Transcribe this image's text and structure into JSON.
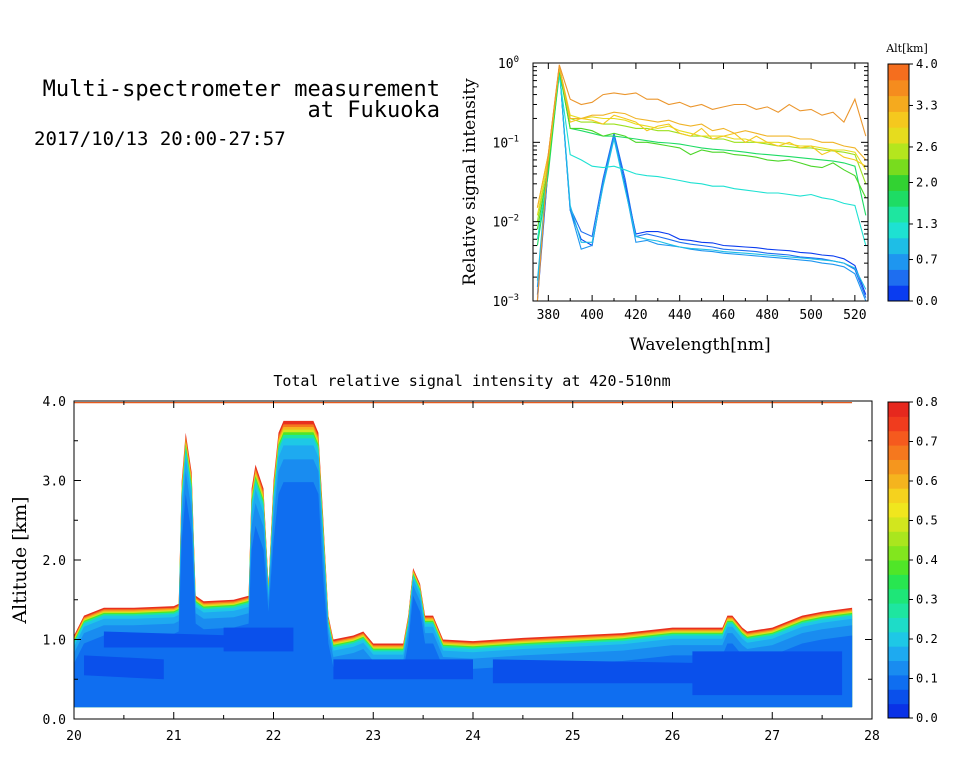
{
  "header": {
    "title_line1": "Multi-spectrometer measurement",
    "title_line2": "at Fukuoka",
    "date_range": "2017/10/13 20:00-27:57"
  },
  "chart_data": [
    {
      "type": "line",
      "ylabel": "Relative signal intensity",
      "xlabel": "Wavelength[nm]",
      "yscale": "log",
      "xlim": [
        373,
        526
      ],
      "ylim": [
        0.001,
        1
      ],
      "x_ticks": [
        "380",
        "400",
        "420",
        "440",
        "460",
        "480",
        "500",
        "520"
      ],
      "y_ticks": [
        {
          "value": 1,
          "base": "10",
          "exp": "0"
        },
        {
          "value": 0.1,
          "base": "10",
          "exp": "−1"
        },
        {
          "value": 0.01,
          "base": "10",
          "exp": "−2"
        },
        {
          "value": 0.001,
          "base": "10",
          "exp": "−3"
        }
      ],
      "colorbar": {
        "title": "Alt[km]",
        "ticks": [
          "0.0",
          "0.7",
          "1.3",
          "2.0",
          "2.6",
          "3.3",
          "4.0"
        ],
        "min": 0,
        "max": 4,
        "colors": [
          "#0a3cf0",
          "#1e6ef0",
          "#1e96f0",
          "#1ebee6",
          "#1ee1d2",
          "#1ee6a0",
          "#1edc64",
          "#32d232",
          "#78dc1e",
          "#b4e61e",
          "#e6dc1e",
          "#f5c81e",
          "#f5aa1e",
          "#f58c1e",
          "#f56e1e"
        ]
      },
      "x": [
        375,
        380,
        385,
        390,
        395,
        400,
        405,
        410,
        415,
        420,
        425,
        430,
        435,
        440,
        445,
        450,
        455,
        460,
        465,
        470,
        475,
        480,
        485,
        490,
        495,
        500,
        505,
        510,
        515,
        520,
        525
      ],
      "series": [
        {
          "altitude": 0.2,
          "color": "#0a3cf0",
          "values": [
            0.001,
            0.05,
            0.9,
            0.014,
            0.006,
            0.005,
            0.03,
            0.12,
            0.03,
            0.007,
            0.0075,
            0.0075,
            0.007,
            0.006,
            0.0058,
            0.0055,
            0.0054,
            0.005,
            0.0049,
            0.0048,
            0.0047,
            0.0045,
            0.0044,
            0.0043,
            0.0041,
            0.004,
            0.0038,
            0.0037,
            0.0034,
            0.0028,
            0.0012
          ]
        },
        {
          "altitude": 0.4,
          "color": "#1e6ef0",
          "values": [
            0.0012,
            0.05,
            0.9,
            0.015,
            0.0075,
            0.0065,
            0.035,
            0.13,
            0.035,
            0.0065,
            0.007,
            0.0065,
            0.006,
            0.0055,
            0.0052,
            0.005,
            0.0048,
            0.0045,
            0.0044,
            0.0043,
            0.0042,
            0.004,
            0.0039,
            0.0038,
            0.0036,
            0.0035,
            0.0034,
            0.0032,
            0.003,
            0.0025,
            0.0011
          ]
        },
        {
          "altitude": 0.6,
          "color": "#1e96f0",
          "values": [
            0.0015,
            0.05,
            0.9,
            0.014,
            0.0045,
            0.005,
            0.03,
            0.12,
            0.028,
            0.0055,
            0.0058,
            0.0052,
            0.005,
            0.0048,
            0.0045,
            0.0043,
            0.0042,
            0.004,
            0.0039,
            0.0038,
            0.0037,
            0.0036,
            0.0035,
            0.0034,
            0.0033,
            0.0032,
            0.003,
            0.0029,
            0.0027,
            0.0022,
            0.001
          ]
        },
        {
          "altitude": 0.8,
          "color": "#1ebee6",
          "values": [
            0.0018,
            0.06,
            0.9,
            0.016,
            0.0055,
            0.0055,
            0.028,
            0.11,
            0.026,
            0.0065,
            0.006,
            0.0057,
            0.0052,
            0.0048,
            0.0046,
            0.0045,
            0.0044,
            0.0042,
            0.0041,
            0.004,
            0.0039,
            0.0038,
            0.0037,
            0.0036,
            0.0035,
            0.0034,
            0.0033,
            0.0032,
            0.003,
            0.0026,
            0.0014
          ]
        },
        {
          "altitude": 1.5,
          "color": "#1ee1d2",
          "values": [
            0.006,
            0.05,
            0.7,
            0.07,
            0.06,
            0.05,
            0.048,
            0.05,
            0.045,
            0.04,
            0.038,
            0.037,
            0.035,
            0.033,
            0.031,
            0.03,
            0.028,
            0.028,
            0.026,
            0.025,
            0.024,
            0.023,
            0.023,
            0.022,
            0.021,
            0.022,
            0.02,
            0.019,
            0.017,
            0.016,
            0.005
          ]
        },
        {
          "altitude": 1.8,
          "color": "#1edc64",
          "values": [
            0.005,
            0.04,
            0.8,
            0.15,
            0.14,
            0.13,
            0.12,
            0.12,
            0.115,
            0.11,
            0.105,
            0.1,
            0.098,
            0.095,
            0.09,
            0.085,
            0.082,
            0.08,
            0.078,
            0.075,
            0.072,
            0.07,
            0.068,
            0.066,
            0.064,
            0.062,
            0.06,
            0.058,
            0.055,
            0.05,
            0.012
          ]
        },
        {
          "altitude": 2.2,
          "color": "#4cd628",
          "values": [
            0.008,
            0.05,
            0.85,
            0.15,
            0.15,
            0.14,
            0.12,
            0.13,
            0.12,
            0.1,
            0.1,
            0.095,
            0.09,
            0.085,
            0.07,
            0.08,
            0.075,
            0.075,
            0.07,
            0.068,
            0.065,
            0.06,
            0.058,
            0.06,
            0.055,
            0.05,
            0.048,
            0.055,
            0.045,
            0.038,
            0.02
          ]
        },
        {
          "altitude": 2.4,
          "color": "#9be11e",
          "values": [
            0.01,
            0.06,
            0.9,
            0.2,
            0.18,
            0.18,
            0.17,
            0.17,
            0.16,
            0.15,
            0.15,
            0.14,
            0.14,
            0.13,
            0.12,
            0.12,
            0.11,
            0.11,
            0.1,
            0.1,
            0.1,
            0.095,
            0.09,
            0.088,
            0.085,
            0.085,
            0.08,
            0.078,
            0.075,
            0.07,
            0.03
          ]
        },
        {
          "altitude": 2.8,
          "color": "#e6dc1e",
          "values": [
            0.012,
            0.06,
            0.9,
            0.22,
            0.2,
            0.21,
            0.2,
            0.2,
            0.19,
            0.17,
            0.16,
            0.15,
            0.16,
            0.14,
            0.13,
            0.12,
            0.12,
            0.12,
            0.11,
            0.11,
            0.1,
            0.1,
            0.1,
            0.095,
            0.09,
            0.09,
            0.085,
            0.08,
            0.08,
            0.075,
            0.045
          ]
        },
        {
          "altitude": 3.0,
          "color": "#f5c81e",
          "values": [
            0.015,
            0.07,
            0.9,
            0.18,
            0.2,
            0.19,
            0.17,
            0.22,
            0.2,
            0.18,
            0.14,
            0.16,
            0.17,
            0.13,
            0.12,
            0.15,
            0.11,
            0.12,
            0.13,
            0.1,
            0.12,
            0.1,
            0.09,
            0.1,
            0.085,
            0.09,
            0.07,
            0.08,
            0.065,
            0.06,
            0.05
          ]
        },
        {
          "altitude": 3.2,
          "color": "#f0b428",
          "values": [
            0.015,
            0.07,
            0.9,
            0.2,
            0.2,
            0.22,
            0.22,
            0.24,
            0.23,
            0.2,
            0.19,
            0.18,
            0.19,
            0.17,
            0.16,
            0.17,
            0.14,
            0.15,
            0.13,
            0.14,
            0.13,
            0.12,
            0.12,
            0.12,
            0.11,
            0.11,
            0.1,
            0.1,
            0.09,
            0.085,
            0.06
          ]
        },
        {
          "altitude": 3.6,
          "color": "#eb962d",
          "values": [
            0.001,
            0.07,
            0.95,
            0.35,
            0.3,
            0.32,
            0.4,
            0.42,
            0.4,
            0.42,
            0.35,
            0.35,
            0.3,
            0.32,
            0.28,
            0.3,
            0.26,
            0.28,
            0.3,
            0.3,
            0.26,
            0.28,
            0.24,
            0.3,
            0.25,
            0.26,
            0.22,
            0.24,
            0.18,
            0.35,
            0.12
          ]
        }
      ]
    },
    {
      "type": "heatmap",
      "title": "Total relative signal intensity at 420-510nm",
      "ylabel": "Altitude [km]",
      "xlim": [
        20,
        28
      ],
      "ylim": [
        0,
        4
      ],
      "x_ticks": [
        "20",
        "21",
        "22",
        "23",
        "24",
        "25",
        "26",
        "27",
        "28"
      ],
      "y_ticks": [
        "0.0",
        "1.0",
        "2.0",
        "3.0",
        "4.0"
      ],
      "colorbar": {
        "ticks": [
          "0.0",
          "0.1",
          "0.2",
          "0.3",
          "0.4",
          "0.5",
          "0.6",
          "0.7",
          "0.8"
        ],
        "min": 0,
        "max": 0.8,
        "colors": [
          "#0a32e6",
          "#0a50eb",
          "#0f6ef0",
          "#198cf0",
          "#1eaaf0",
          "#1ec8e6",
          "#1edcc8",
          "#1ee6a0",
          "#1ee678",
          "#28e650",
          "#50e628",
          "#82e61e",
          "#aae61e",
          "#d2e61e",
          "#f0e61e",
          "#f5d21e",
          "#f5b41e",
          "#f5961e",
          "#f5781e",
          "#f55a1e",
          "#f03c1e",
          "#e6281e"
        ]
      },
      "data_start_altitude": 0.15,
      "data_end_time": 27.8,
      "boundary": {
        "t": [
          20.0,
          20.1,
          20.3,
          20.6,
          21.0,
          21.05,
          21.08,
          21.12,
          21.18,
          21.22,
          21.3,
          21.6,
          21.75,
          21.78,
          21.82,
          21.9,
          21.95,
          22.0,
          22.05,
          22.1,
          22.4,
          22.45,
          22.5,
          22.55,
          22.6,
          22.8,
          22.9,
          23.0,
          23.3,
          23.35,
          23.4,
          23.47,
          23.52,
          23.6,
          23.7,
          24.0,
          24.5,
          25.0,
          25.5,
          26.0,
          26.5,
          26.55,
          26.6,
          26.7,
          26.75,
          27.0,
          27.3,
          27.5,
          27.8
        ],
        "alt": [
          1.05,
          1.3,
          1.4,
          1.4,
          1.42,
          1.45,
          3.0,
          3.6,
          3.1,
          1.55,
          1.48,
          1.5,
          1.55,
          2.9,
          3.2,
          2.9,
          1.7,
          3.0,
          3.6,
          3.75,
          3.75,
          3.6,
          2.5,
          1.3,
          1.0,
          1.05,
          1.1,
          0.95,
          0.95,
          1.3,
          1.9,
          1.7,
          1.3,
          1.3,
          1.0,
          0.98,
          1.02,
          1.05,
          1.08,
          1.15,
          1.15,
          1.3,
          1.3,
          1.15,
          1.1,
          1.15,
          1.3,
          1.35,
          1.4
        ]
      }
    }
  ]
}
